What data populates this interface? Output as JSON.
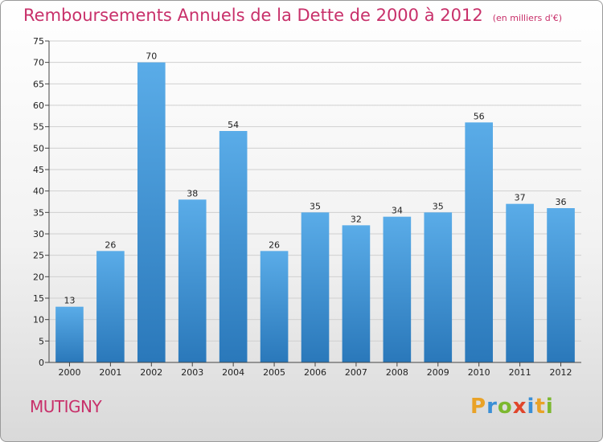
{
  "title": "Remboursements Annuels de la Dette de 2000 à 2012",
  "unit_note": "(en milliers d'€)",
  "commune": "MUTIGNY",
  "logo": {
    "text": "Proxiti",
    "letters": [
      {
        "ch": "P",
        "color": "#e9a227"
      },
      {
        "ch": "r",
        "color": "#3a8fd6"
      },
      {
        "ch": "o",
        "color": "#7cb82f"
      },
      {
        "ch": "x",
        "color": "#e0452b"
      },
      {
        "ch": "i",
        "color": "#3a8fd6"
      },
      {
        "ch": "t",
        "color": "#e9a227"
      },
      {
        "ch": "i",
        "color": "#7cb82f"
      }
    ]
  },
  "colors": {
    "title": "#c8306a",
    "bar_top": "#5aace8",
    "bar_bottom": "#2a78ba",
    "grid": "#d0d0d0"
  },
  "chart_data": {
    "type": "bar",
    "categories": [
      "2000",
      "2001",
      "2002",
      "2003",
      "2004",
      "2005",
      "2006",
      "2007",
      "2008",
      "2009",
      "2010",
      "2011",
      "2012"
    ],
    "values": [
      13,
      26,
      70,
      38,
      54,
      26,
      35,
      32,
      34,
      35,
      56,
      37,
      36
    ],
    "ylim": [
      0,
      75
    ],
    "yticks": [
      0,
      5,
      10,
      15,
      20,
      25,
      30,
      35,
      40,
      45,
      50,
      55,
      60,
      65,
      70,
      75
    ],
    "grid": true,
    "data_labels": true
  }
}
